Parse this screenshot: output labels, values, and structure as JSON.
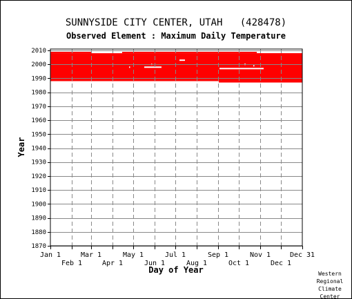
{
  "header": {
    "title": "SUNNYSIDE CITY CENTER, UTAH   (428478)",
    "subtitle": "Observed Element : Maximum Daily Temperature"
  },
  "credit": [
    "Western",
    "Regional",
    "Climate",
    "Center"
  ],
  "colors": {
    "data": "#ff0000",
    "grid": "#888888",
    "axis": "#000000",
    "background": "#ffffff"
  },
  "chart_data": {
    "type": "heatmap",
    "title": "SUNNYSIDE CITY CENTER, UTAH   (428478)",
    "subtitle": "Observed Element : Maximum Daily Temperature",
    "xlabel": "Day of Year",
    "ylabel": "Year",
    "xlim": [
      1,
      366
    ],
    "ylim": [
      1870,
      2011
    ],
    "grid": true,
    "x_ticks_top": [
      {
        "label": "Jan 1",
        "day": 1
      },
      {
        "label": "Mar 1",
        "day": 60
      },
      {
        "label": "May 1",
        "day": 121
      },
      {
        "label": "Jul 1",
        "day": 182
      },
      {
        "label": "Sep 1",
        "day": 244
      },
      {
        "label": "Nov 1",
        "day": 305
      },
      {
        "label": "Dec 31",
        "day": 366
      }
    ],
    "x_ticks_bottom": [
      {
        "label": "Feb 1",
        "day": 32
      },
      {
        "label": "Apr 1",
        "day": 91
      },
      {
        "label": "Jun 1",
        "day": 152
      },
      {
        "label": "Aug 1",
        "day": 213
      },
      {
        "label": "Oct 1",
        "day": 274
      },
      {
        "label": "Dec 1",
        "day": 335
      }
    ],
    "y_ticks": [
      "1870",
      "1880",
      "1890",
      "1900",
      "1910",
      "1920",
      "1930",
      "1940",
      "1950",
      "1960",
      "1970",
      "1980",
      "1990",
      "2000",
      "2010"
    ],
    "series": [
      {
        "values": [
          {
            "start_day": 1,
            "end_day": 366,
            "start_year": 1988,
            "end_year": 2008
          },
          {
            "start_day": 245,
            "end_day": 366,
            "start_year": 1987,
            "end_year": 1988
          },
          {
            "start_day": 1,
            "end_day": 60,
            "start_year": 2008,
            "end_year": 2009
          },
          {
            "start_day": 105,
            "end_day": 300,
            "start_year": 2008,
            "end_year": 2009
          },
          {
            "start_day": 300,
            "end_day": 366,
            "start_year": 2006,
            "end_year": 2008
          }
        ]
      }
    ],
    "gaps": [
      {
        "start_day": 137,
        "end_day": 162,
        "year": 1998
      },
      {
        "start_day": 188,
        "end_day": 196,
        "year": 2003
      },
      {
        "start_day": 246,
        "end_day": 310,
        "year": 1997
      },
      {
        "start_day": 115,
        "end_day": 116,
        "year": 1998
      },
      {
        "start_day": 147,
        "end_day": 148,
        "year": 2000
      },
      {
        "start_day": 282,
        "end_day": 284,
        "year": 2000
      },
      {
        "start_day": 295,
        "end_day": 296,
        "year": 1999
      }
    ]
  }
}
